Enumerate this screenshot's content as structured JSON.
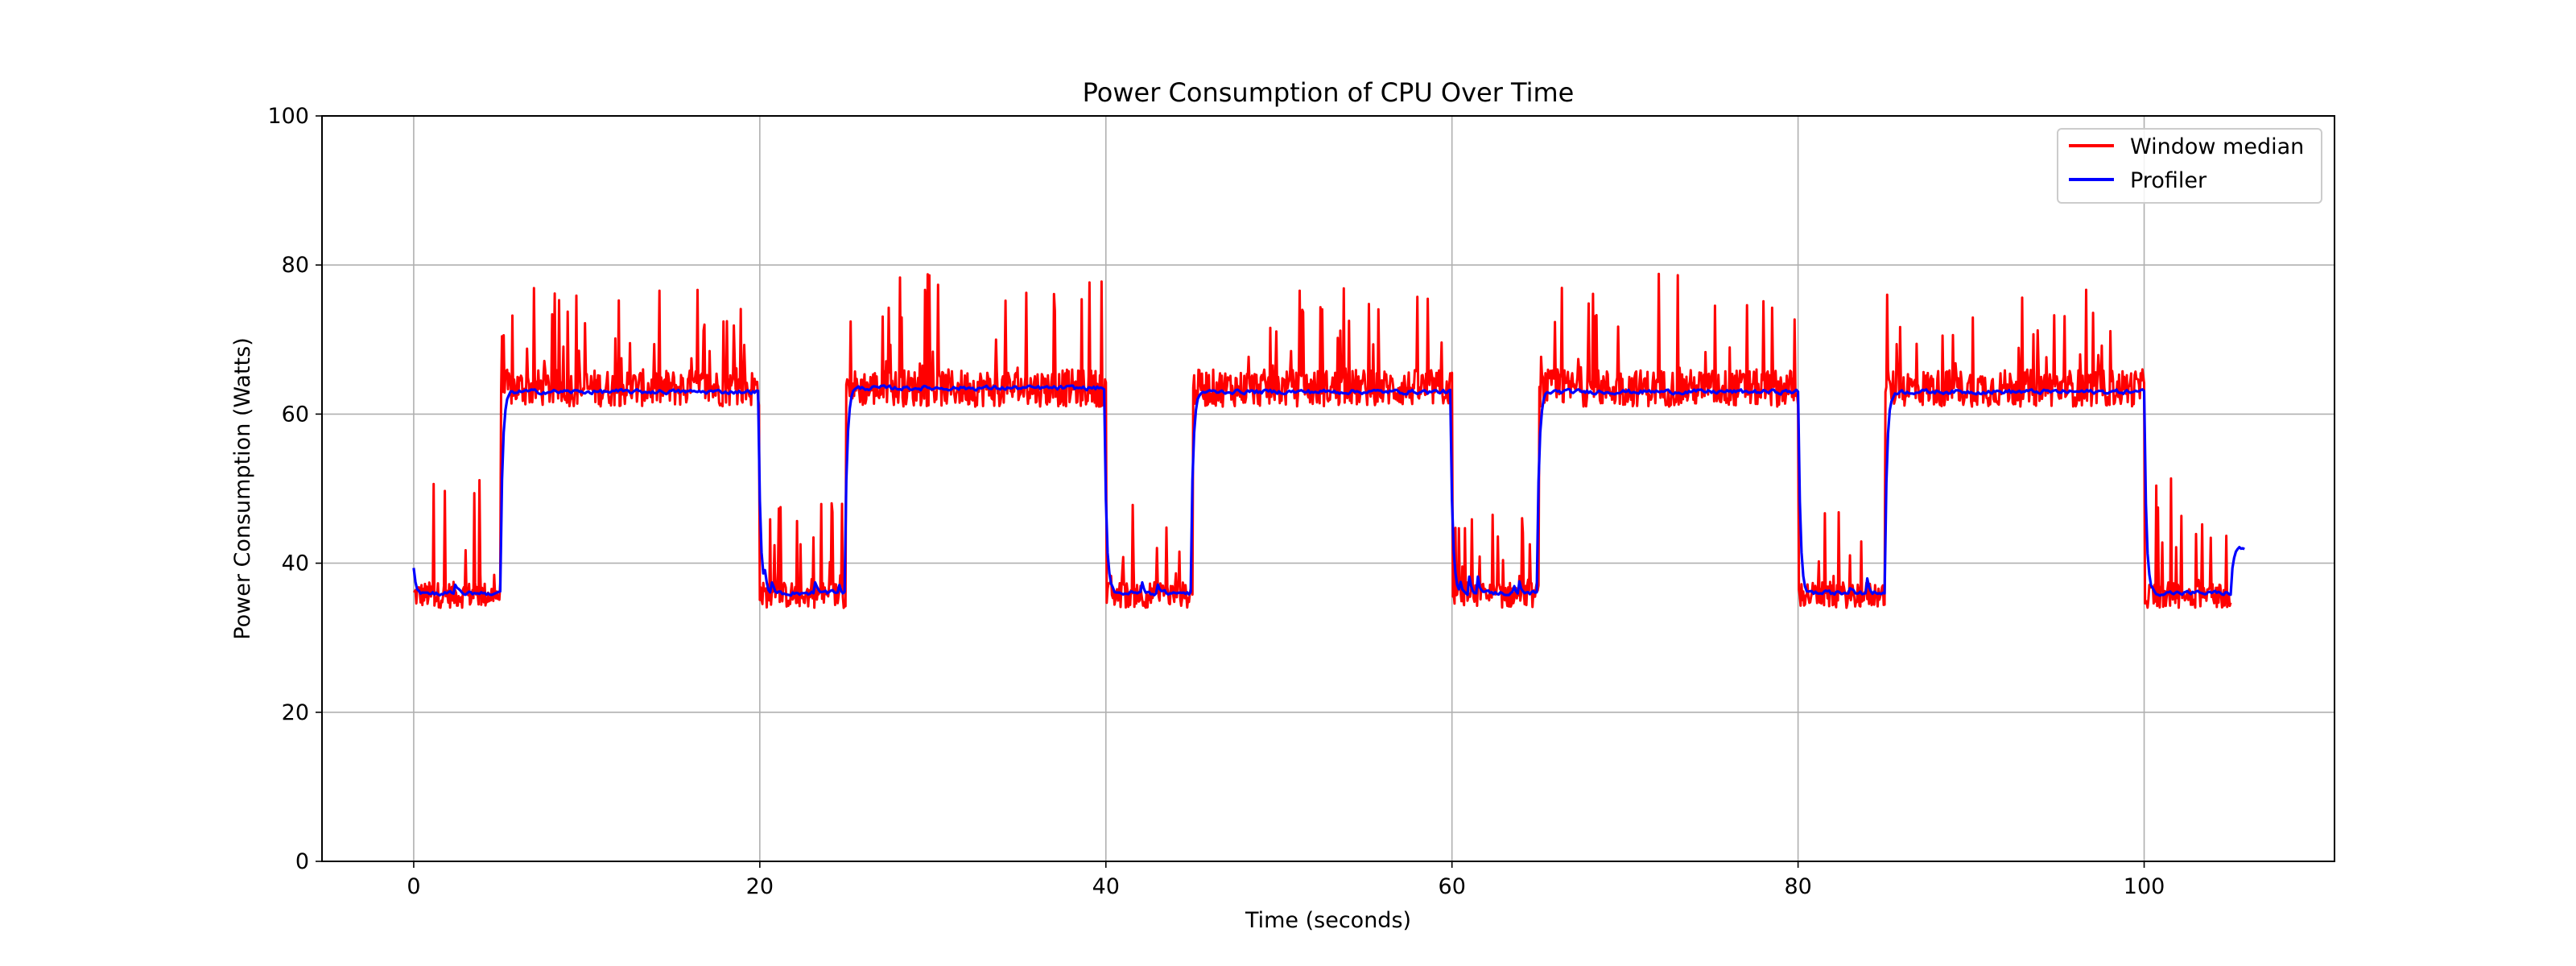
{
  "chart_data": {
    "type": "line",
    "title": "Power Consumption of CPU Over Time",
    "xlabel": "Time (seconds)",
    "ylabel": "Power Consumption (Watts)",
    "xlim": [
      -5.3,
      111.0
    ],
    "ylim": [
      0,
      100
    ],
    "x_ticks": [
      0,
      20,
      40,
      60,
      80,
      100
    ],
    "y_ticks": [
      0,
      20,
      40,
      60,
      80,
      100
    ],
    "grid": true,
    "legend_position": "top-right",
    "series": [
      {
        "name": "Window median",
        "color": "#ff0000",
        "sample_step": 0.05,
        "range": [
          0,
          105
        ],
        "phases": [
          {
            "start": 0,
            "end": 5,
            "base": 35,
            "peak": 61.5,
            "state": "idle"
          },
          {
            "start": 5,
            "end": 20,
            "base": 61,
            "peak": 77,
            "state": "load"
          },
          {
            "start": 20,
            "end": 25,
            "base": 35,
            "peak": 49,
            "state": "idle"
          },
          {
            "start": 25,
            "end": 40,
            "base": 61,
            "peak": 79.5,
            "state": "load"
          },
          {
            "start": 40,
            "end": 45,
            "base": 35,
            "peak": 48,
            "state": "idle"
          },
          {
            "start": 45,
            "end": 60,
            "base": 61,
            "peak": 77,
            "state": "load"
          },
          {
            "start": 60,
            "end": 65,
            "base": 35,
            "peak": 47,
            "state": "idle"
          },
          {
            "start": 65,
            "end": 80,
            "base": 61,
            "peak": 80,
            "state": "load"
          },
          {
            "start": 80,
            "end": 85,
            "base": 35,
            "peak": 47,
            "state": "idle"
          },
          {
            "start": 85,
            "end": 100,
            "base": 61,
            "peak": 77,
            "state": "load"
          },
          {
            "start": 100,
            "end": 105,
            "base": 35,
            "peak": 53,
            "state": "idle"
          }
        ]
      },
      {
        "name": "Profiler",
        "color": "#0000ff",
        "sample_step": 0.1,
        "range": [
          0,
          105.8
        ],
        "phases": [
          {
            "start": 0,
            "end": 5,
            "level": 36,
            "state": "idle"
          },
          {
            "start": 5,
            "end": 20,
            "level": 63,
            "state": "load"
          },
          {
            "start": 20,
            "end": 25,
            "level": 36,
            "state": "idle"
          },
          {
            "start": 25,
            "end": 40,
            "level": 63.5,
            "state": "load"
          },
          {
            "start": 40,
            "end": 45,
            "level": 36,
            "state": "idle"
          },
          {
            "start": 45,
            "end": 60,
            "level": 63,
            "state": "load"
          },
          {
            "start": 60,
            "end": 65,
            "level": 36,
            "state": "idle"
          },
          {
            "start": 65,
            "end": 80,
            "level": 63,
            "state": "load"
          },
          {
            "start": 80,
            "end": 85,
            "level": 36,
            "state": "idle"
          },
          {
            "start": 85,
            "end": 100,
            "level": 63,
            "state": "load"
          },
          {
            "start": 100,
            "end": 105,
            "level": 36,
            "state": "idle"
          },
          {
            "start": 105,
            "end": 105.8,
            "level": 42,
            "state": "idle"
          }
        ],
        "start_value": 43.5
      }
    ]
  }
}
